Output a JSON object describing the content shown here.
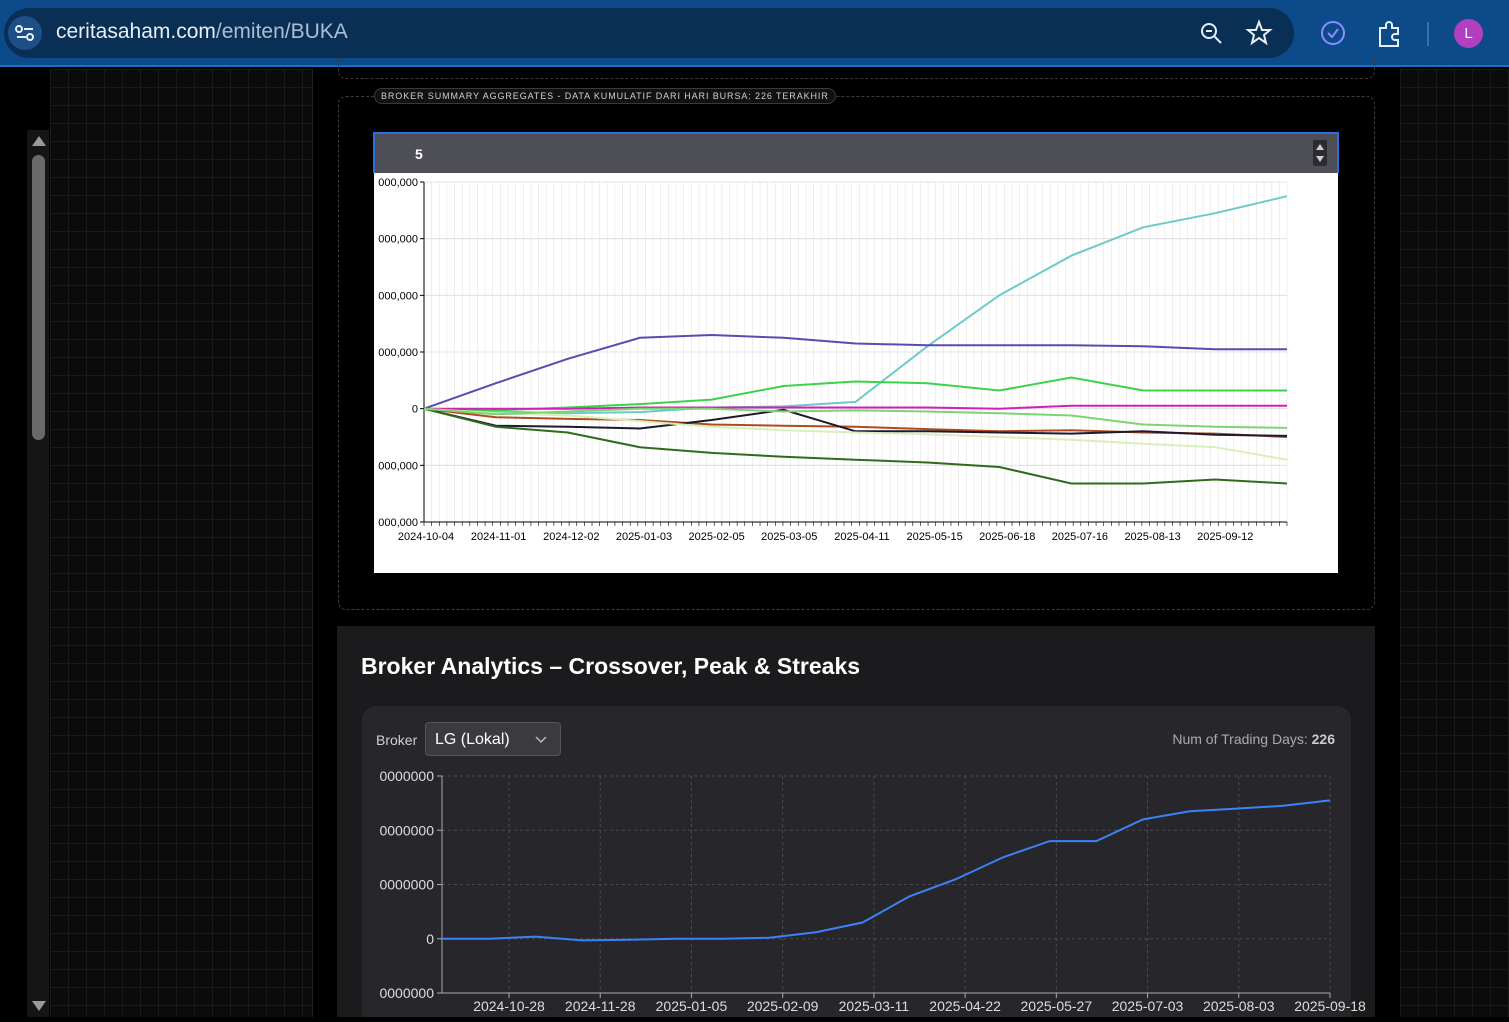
{
  "browser": {
    "url_domain": "ceritasaham.com",
    "url_path": "/emiten/BUKA",
    "profile_initial": "L"
  },
  "summary_card": {
    "legend": "BROKER SUMMARY AGGREGATES - DATA KUMULATIF DARI HARI BURSA: 226 TERAKHIR",
    "top_n_value": "5"
  },
  "analytics": {
    "title": "Broker Analytics – Crossover, Peak & Streaks",
    "broker_label": "Broker",
    "broker_selected": "LG (Lokal)",
    "trading_days_label": "Num of Trading Days:",
    "trading_days_value": "226"
  },
  "chart_data": [
    {
      "type": "line",
      "title": "",
      "xlabel": "",
      "ylabel": "",
      "y_tick_labels": [
        "000,000",
        "000,000",
        "000,000",
        "000,000",
        "0",
        "000,000",
        "000,000"
      ],
      "y_ticks": [
        400,
        300,
        200,
        100,
        0,
        -100,
        -200
      ],
      "ylim": [
        -200,
        400
      ],
      "x_tick_labels": [
        "2024-10-04",
        "2024-11-01",
        "2024-12-02",
        "2025-01-03",
        "2025-02-05",
        "2025-03-05",
        "2025-04-11",
        "2025-05-15",
        "2025-06-18",
        "2025-07-16",
        "2025-08-13",
        "2025-09-12"
      ],
      "grid": true,
      "x": [
        0,
        10,
        20,
        30,
        40,
        50,
        60,
        70,
        80,
        90,
        100,
        110,
        120
      ],
      "series": [
        {
          "color": "#6ec9c9",
          "values": [
            0,
            -5,
            -8,
            -6,
            2,
            4,
            12,
            110,
            200,
            270,
            320,
            345,
            375
          ]
        },
        {
          "color": "#5b4bb0",
          "values": [
            0,
            45,
            88,
            125,
            130,
            125,
            115,
            112,
            112,
            112,
            110,
            105,
            105
          ]
        },
        {
          "color": "#3cd24a",
          "values": [
            0,
            -3,
            2,
            8,
            16,
            40,
            48,
            45,
            32,
            55,
            32,
            32,
            32
          ]
        },
        {
          "color": "#b14a1e",
          "values": [
            0,
            -15,
            -18,
            -20,
            -28,
            -30,
            -32,
            -36,
            -40,
            -38,
            -42,
            -44,
            -50
          ]
        },
        {
          "color": "#1e1a2c",
          "values": [
            0,
            -30,
            -32,
            -35,
            -20,
            -2,
            -40,
            -40,
            -42,
            -44,
            -40,
            -46,
            -48
          ]
        },
        {
          "color": "#2f6b1e",
          "values": [
            0,
            -32,
            -42,
            -68,
            -78,
            -85,
            -90,
            -95,
            -103,
            -132,
            -132,
            -125,
            -132
          ]
        },
        {
          "color": "#d41fb7",
          "values": [
            0,
            0,
            0,
            2,
            2,
            2,
            2,
            2,
            0,
            5,
            5,
            5,
            5
          ]
        },
        {
          "color": "#d8efb8",
          "values": [
            0,
            -8,
            -12,
            -22,
            -32,
            -38,
            -42,
            -45,
            -50,
            -55,
            -62,
            -68,
            -90
          ]
        },
        {
          "color": "#7cd670",
          "values": [
            0,
            -10,
            -5,
            0,
            0,
            -5,
            -3,
            -5,
            -8,
            -12,
            -28,
            -32,
            -34
          ]
        }
      ]
    },
    {
      "type": "line",
      "title": "",
      "xlabel": "",
      "ylabel": "",
      "y_tick_labels": [
        "0000000",
        "0000000",
        "0000000",
        "0",
        "0000000"
      ],
      "y_ticks": [
        300,
        200,
        100,
        0,
        -100
      ],
      "ylim": [
        -100,
        300
      ],
      "x_tick_labels": [
        "2024-10-28",
        "2024-11-28",
        "2025-01-05",
        "2025-02-09",
        "2025-03-11",
        "2025-04-22",
        "2025-05-27",
        "2025-07-03",
        "2025-08-03",
        "2025-09-18"
      ],
      "grid": true,
      "series": [
        {
          "name": "LG (Lokal)",
          "color": "#3b82f6",
          "values": [
            0,
            0,
            4,
            -3,
            -2,
            0,
            0,
            2,
            12,
            30,
            78,
            110,
            150,
            180,
            180,
            220,
            235,
            240,
            245,
            255
          ]
        }
      ]
    }
  ]
}
